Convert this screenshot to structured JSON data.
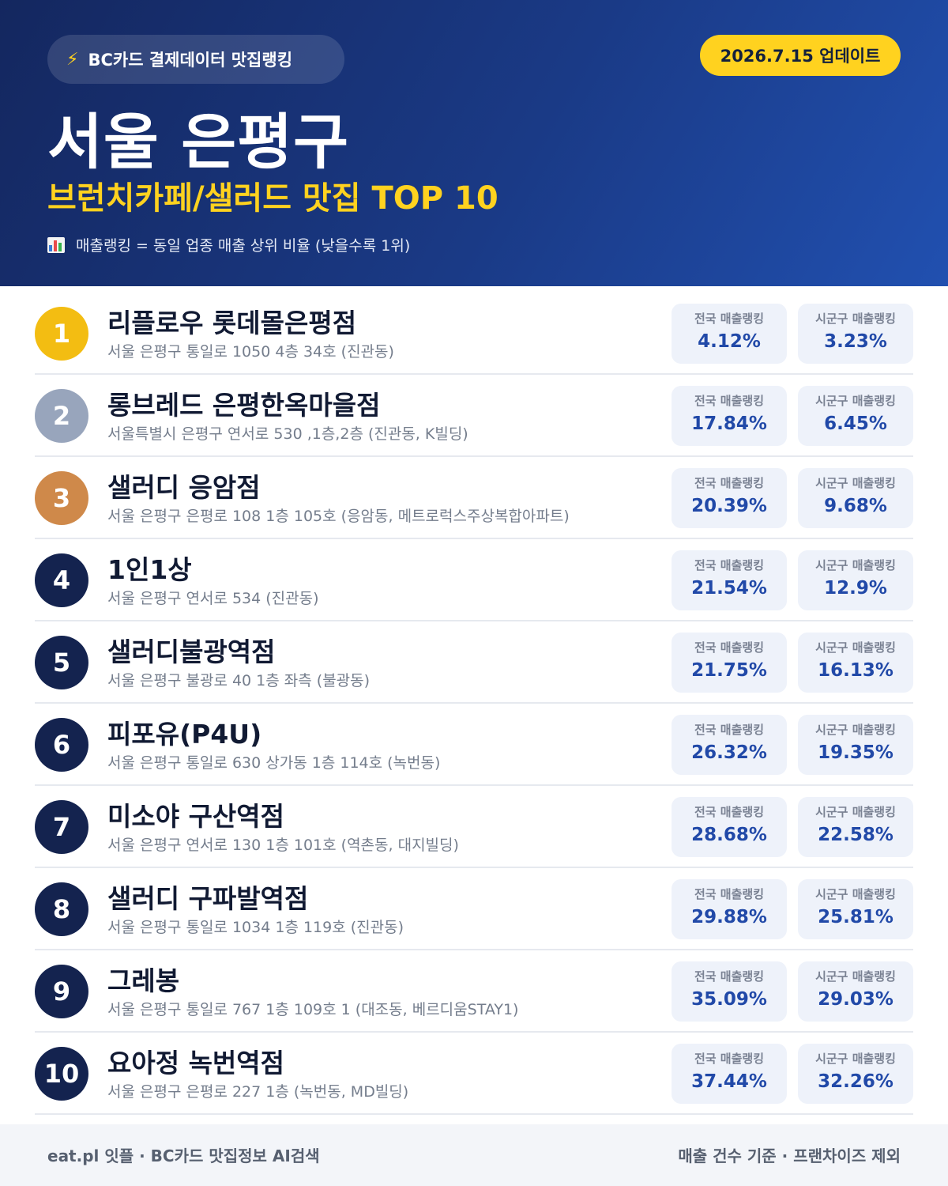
{
  "header": {
    "source_icon": "lightning-bolt-icon",
    "source_label": "BC카드 결제데이터 맛집랭킹",
    "update_label": "2026.7.15 업데이트",
    "title": "서울 은평구",
    "subtitle": "브런치카페/샐러드 맛집 TOP 10",
    "note_icon": "bar-chart-icon",
    "note": "매출랭킹 = 동일 업종 매출 상위 비율 (낮을수록 1위)"
  },
  "colors": {
    "header_bg": "#1a3a86",
    "accent_yellow": "#ffd21f",
    "rank_gold": "#f3bd12",
    "rank_silver": "#98a5bc",
    "rank_bronze": "#cf894a",
    "rank_default": "#14234f",
    "stat_value": "#2149a8"
  },
  "labels": {
    "national": "전국 매출랭킹",
    "local": "시군구 매출랭킹"
  },
  "items": [
    {
      "rank": "1",
      "name": "리플로우 롯데몰은평점",
      "address": "서울 은평구 통일로 1050 4층 34호 (진관동)",
      "national": "4.12%",
      "local": "3.23%"
    },
    {
      "rank": "2",
      "name": "롱브레드 은평한옥마을점",
      "address": "서울특별시 은평구 연서로 530 ,1층,2층 (진관동, K빌딩)",
      "national": "17.84%",
      "local": "6.45%"
    },
    {
      "rank": "3",
      "name": "샐러디 응암점",
      "address": "서울 은평구 은평로 108 1층 105호 (응암동, 메트로럭스주상복합아파트)",
      "national": "20.39%",
      "local": "9.68%"
    },
    {
      "rank": "4",
      "name": "1인1상",
      "address": "서울 은평구 연서로 534 (진관동)",
      "national": "21.54%",
      "local": "12.9%"
    },
    {
      "rank": "5",
      "name": "샐러디불광역점",
      "address": "서울 은평구 불광로 40 1층 좌측 (불광동)",
      "national": "21.75%",
      "local": "16.13%"
    },
    {
      "rank": "6",
      "name": "피포유(P4U)",
      "address": "서울 은평구 통일로 630 상가동 1층 114호 (녹번동)",
      "national": "26.32%",
      "local": "19.35%"
    },
    {
      "rank": "7",
      "name": "미소야 구산역점",
      "address": "서울 은평구 연서로 130 1층 101호 (역촌동, 대지빌딩)",
      "national": "28.68%",
      "local": "22.58%"
    },
    {
      "rank": "8",
      "name": "샐러디 구파발역점",
      "address": "서울 은평구 통일로 1034 1층 119호 (진관동)",
      "national": "29.88%",
      "local": "25.81%"
    },
    {
      "rank": "9",
      "name": "그레봉",
      "address": "서울 은평구 통일로 767 1층 109호 1 (대조동, 베르디움STAY1)",
      "national": "35.09%",
      "local": "29.03%"
    },
    {
      "rank": "10",
      "name": "요아정 녹번역점",
      "address": "서울 은평구 은평로 227 1층 (녹번동, MD빌딩)",
      "national": "37.44%",
      "local": "32.26%"
    }
  ],
  "footer": {
    "left": "eat.pl 잇플 · BC카드 맛집정보 AI검색",
    "right": "매출 건수 기준 · 프랜차이즈 제외"
  }
}
